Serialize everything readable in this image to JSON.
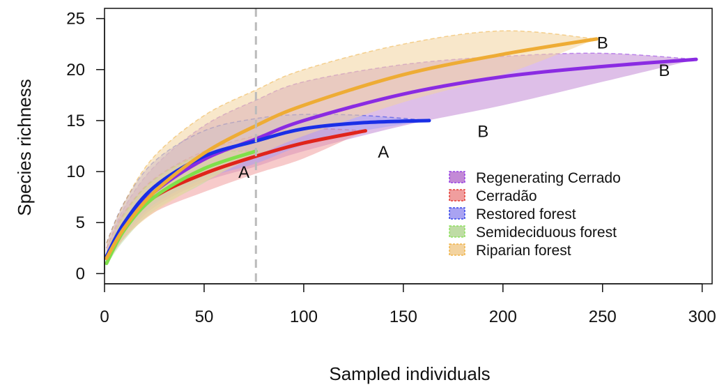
{
  "chart_data": {
    "type": "line",
    "title": "",
    "xlabel": "Sampled individuals",
    "ylabel": "Species richness",
    "xlim": [
      0,
      305
    ],
    "ylim": [
      -1,
      26
    ],
    "xticks": [
      0,
      50,
      100,
      150,
      200,
      250,
      300
    ],
    "yticks": [
      0,
      5,
      10,
      15,
      20,
      25
    ],
    "grid": false,
    "legend_position": "bottom-right",
    "reference_line": {
      "x": 76,
      "style": "dashed",
      "color": "#bbbbbb"
    },
    "series": [
      {
        "name": "Regenerating Cerrado",
        "line_color": "#8a2be2",
        "fill_color": "#c38ad6",
        "x": [
          1,
          10,
          25,
          50,
          76,
          100,
          150,
          200,
          250,
          297
        ],
        "y": [
          1.5,
          4.8,
          8.0,
          11.2,
          13.2,
          15.0,
          17.6,
          19.3,
          20.3,
          21.0
        ],
        "upper": [
          2.5,
          6.5,
          10.5,
          14.5,
          17.0,
          18.8,
          20.5,
          21.3,
          21.6,
          21.0
        ],
        "lower": [
          1.0,
          3.5,
          6.5,
          9.0,
          10.5,
          12.0,
          14.5,
          16.5,
          18.8,
          21.0
        ]
      },
      {
        "name": "Cerradão",
        "line_color": "#e0241b",
        "fill_color": "#f09e9e",
        "x": [
          1,
          10,
          25,
          50,
          76,
          100,
          131
        ],
        "y": [
          1.5,
          4.5,
          7.5,
          9.8,
          11.5,
          12.8,
          14.0
        ],
        "upper": [
          2.5,
          6.0,
          9.3,
          12.0,
          13.5,
          14.2,
          14.0
        ],
        "lower": [
          1.0,
          3.5,
          6.0,
          8.0,
          9.8,
          11.3,
          14.0
        ]
      },
      {
        "name": "Restored forest",
        "line_color": "#1a2fe6",
        "fill_color": "#a9a3f2",
        "x": [
          1,
          10,
          25,
          50,
          76,
          100,
          130,
          163
        ],
        "y": [
          1.7,
          5.0,
          8.5,
          11.5,
          13.0,
          14.2,
          14.8,
          15.0
        ],
        "upper": [
          3.0,
          7.0,
          11.0,
          14.0,
          15.2,
          15.6,
          15.5,
          15.0
        ],
        "lower": [
          1.0,
          3.8,
          6.8,
          9.3,
          10.8,
          12.6,
          14.0,
          15.0
        ]
      },
      {
        "name": "Semideciduous forest",
        "line_color": "#7fe04a",
        "fill_color": "#bfdca5",
        "x": [
          1,
          10,
          25,
          50,
          76
        ],
        "y": [
          1.0,
          4.3,
          7.5,
          10.3,
          12.0
        ],
        "upper": [
          1.8,
          5.8,
          9.2,
          11.7,
          12.0
        ],
        "lower": [
          0.8,
          3.3,
          6.2,
          8.9,
          12.0
        ]
      },
      {
        "name": "Riparian forest",
        "line_color": "#eeac35",
        "fill_color": "#f3d39f",
        "x": [
          1,
          10,
          25,
          50,
          76,
          100,
          150,
          200,
          247
        ],
        "y": [
          1.5,
          4.5,
          8.0,
          11.8,
          14.5,
          16.5,
          19.5,
          21.5,
          23.0
        ],
        "upper": [
          3.0,
          7.0,
          11.5,
          15.5,
          18.0,
          20.0,
          22.5,
          23.8,
          23.0
        ],
        "lower": [
          1.0,
          3.5,
          6.0,
          9.0,
          11.5,
          13.5,
          16.8,
          19.5,
          23.0
        ]
      }
    ],
    "annotations": [
      {
        "text": "B",
        "x": 250,
        "y": 22.7
      },
      {
        "text": "B",
        "x": 281,
        "y": 20.0
      },
      {
        "text": "B",
        "x": 190,
        "y": 14.0
      },
      {
        "text": "A",
        "x": 140,
        "y": 12.0
      },
      {
        "text": "A",
        "x": 70,
        "y": 10.0
      }
    ]
  }
}
